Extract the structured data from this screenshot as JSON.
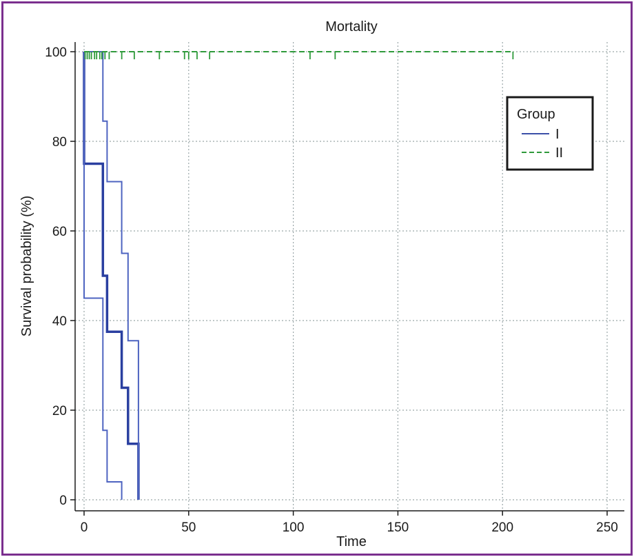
{
  "chart_data": {
    "type": "line",
    "title": "Mortality",
    "xlabel": "Time",
    "ylabel": "Survival probability (%)",
    "xlim": [
      0,
      250
    ],
    "ylim": [
      0,
      100
    ],
    "x_ticks": [
      0,
      50,
      100,
      150,
      200,
      250
    ],
    "y_ticks": [
      0,
      20,
      40,
      60,
      80,
      100
    ],
    "grid": true,
    "legend": {
      "title": "Group",
      "placement": "top-right",
      "entries": [
        {
          "label": "I",
          "color": "#3b4fa8",
          "style": "solid"
        },
        {
          "label": "II",
          "color": "#2e9a3a",
          "style": "dashed"
        }
      ]
    },
    "series": [
      {
        "name": "I",
        "color": "#2a3fa0",
        "style": "solid",
        "role": "estimate",
        "x": [
          0,
          0,
          9,
          9,
          11,
          11,
          18,
          18,
          21,
          21,
          26,
          26
        ],
        "y": [
          100,
          75,
          75,
          50,
          50,
          37.5,
          37.5,
          25,
          25,
          12.5,
          12.5,
          0
        ]
      },
      {
        "name": "I",
        "color": "#4d63c0",
        "style": "solid",
        "role": "upper CI",
        "x": [
          0,
          9,
          9,
          11,
          11,
          18,
          18,
          21,
          21,
          26,
          26
        ],
        "y": [
          100,
          100,
          84.5,
          84.5,
          71,
          71,
          55,
          55,
          35.5,
          35.5,
          0
        ]
      },
      {
        "name": "I",
        "color": "#4d63c0",
        "style": "solid",
        "role": "lower CI",
        "x": [
          0,
          0,
          9,
          9,
          11,
          11,
          18,
          18
        ],
        "y": [
          100,
          45,
          45,
          15.5,
          15.5,
          4,
          4,
          0
        ]
      },
      {
        "name": "II",
        "color": "#2e9a3a",
        "style": "dashed",
        "x": [
          0,
          205
        ],
        "y": [
          100,
          100
        ],
        "censor_marks": [
          0.5,
          1.5,
          2.5,
          3.5,
          5,
          6,
          7.5,
          8.5,
          10,
          12,
          18,
          24,
          36,
          48,
          50,
          54,
          60,
          108,
          120,
          205
        ]
      }
    ]
  }
}
